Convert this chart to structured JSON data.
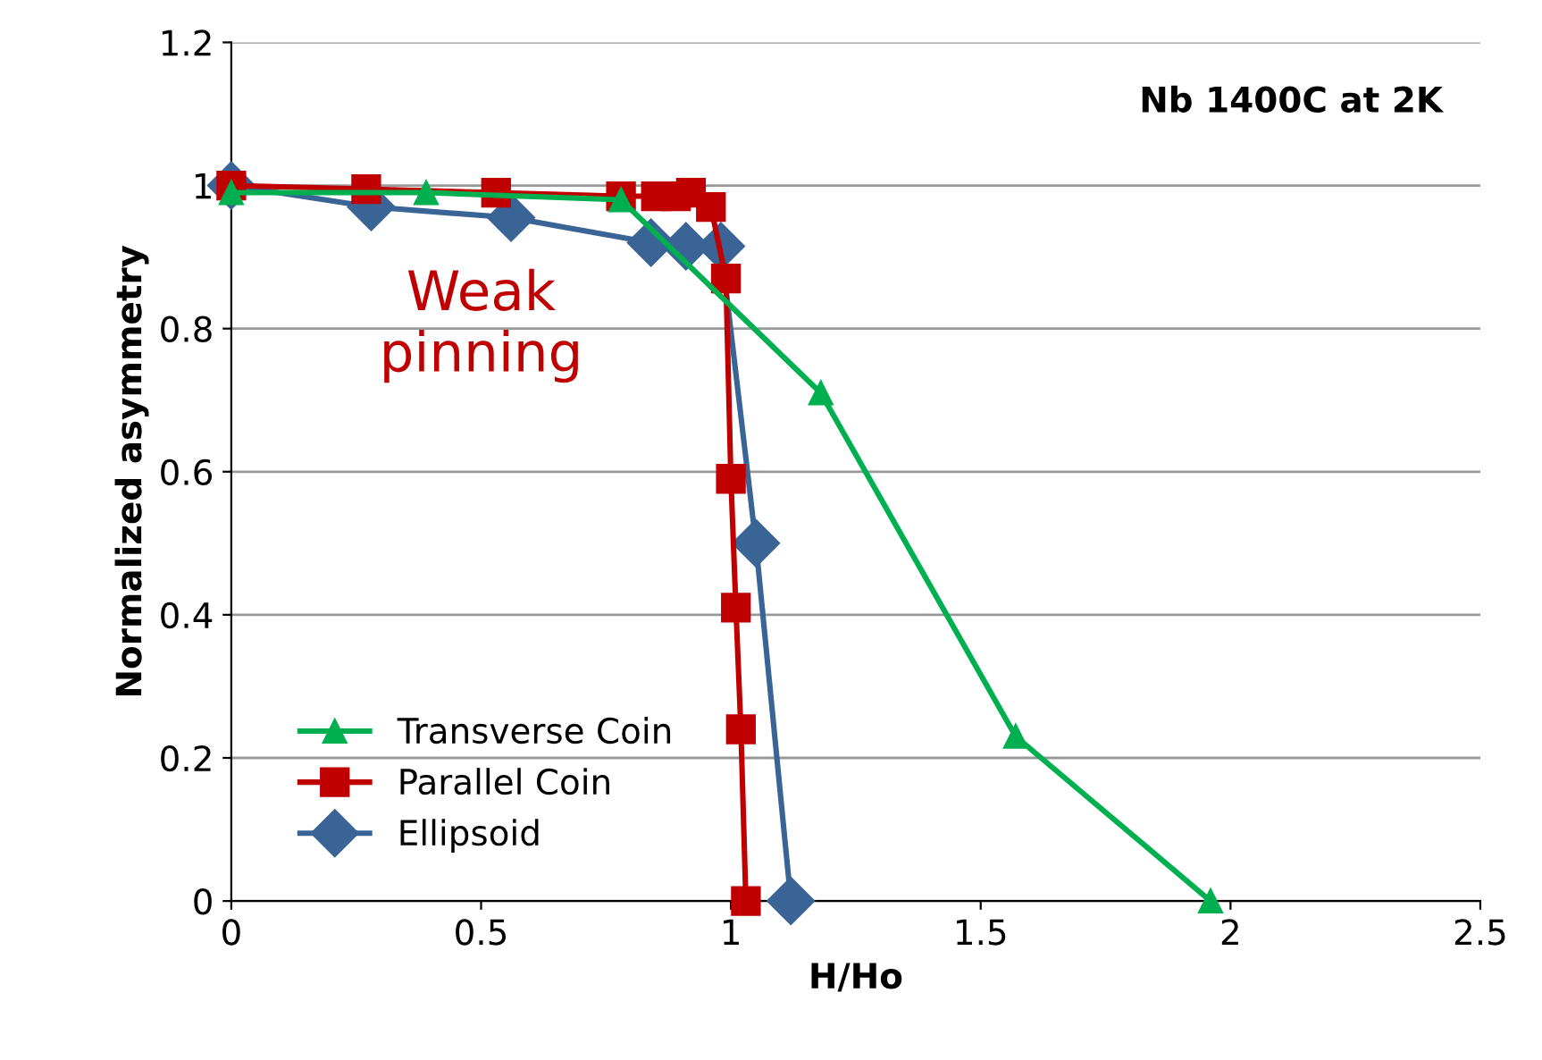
{
  "chart_data": {
    "type": "line",
    "xlabel": "H/Ho",
    "ylabel": "Normalized asymmetry",
    "xlim": [
      0,
      2.5
    ],
    "xticks": [
      0,
      0.5,
      1,
      1.5,
      2,
      2.5
    ],
    "ylim": [
      0,
      1.2
    ],
    "yticks": [
      0,
      0.2,
      0.4,
      0.6,
      0.8,
      1,
      1.2
    ],
    "grid": "y",
    "legend": "bottom left",
    "line_style": "solid",
    "annotations": [
      "Nb 1400C at 2K",
      "Weak\npinning"
    ],
    "series": [
      {
        "name": "Transverse Coin",
        "color": "#00b050",
        "marker": "triangle",
        "x": [
          0,
          0.39,
          0.78,
          1.18,
          1.57,
          1.96
        ],
        "values": [
          0.99,
          0.99,
          0.98,
          0.71,
          0.23,
          0
        ]
      },
      {
        "name": "Parallel Coin",
        "color": "#c00000",
        "marker": "square",
        "x": [
          0,
          0.27,
          0.53,
          0.78,
          0.85,
          0.89,
          0.92,
          0.96,
          0.99,
          1.0,
          1.01,
          1.02,
          1.03
        ],
        "values": [
          1.0,
          0.995,
          0.99,
          0.985,
          0.985,
          0.985,
          0.99,
          0.97,
          0.87,
          0.59,
          0.41,
          0.24,
          0
        ]
      },
      {
        "name": "Ellipsoid",
        "color": "#3a6496",
        "marker": "diamond",
        "x": [
          0,
          0.28,
          0.56,
          0.84,
          0.91,
          0.98,
          1.05,
          1.12
        ],
        "values": [
          1.0,
          0.97,
          0.955,
          0.92,
          0.915,
          0.915,
          0.5,
          0
        ]
      }
    ]
  }
}
